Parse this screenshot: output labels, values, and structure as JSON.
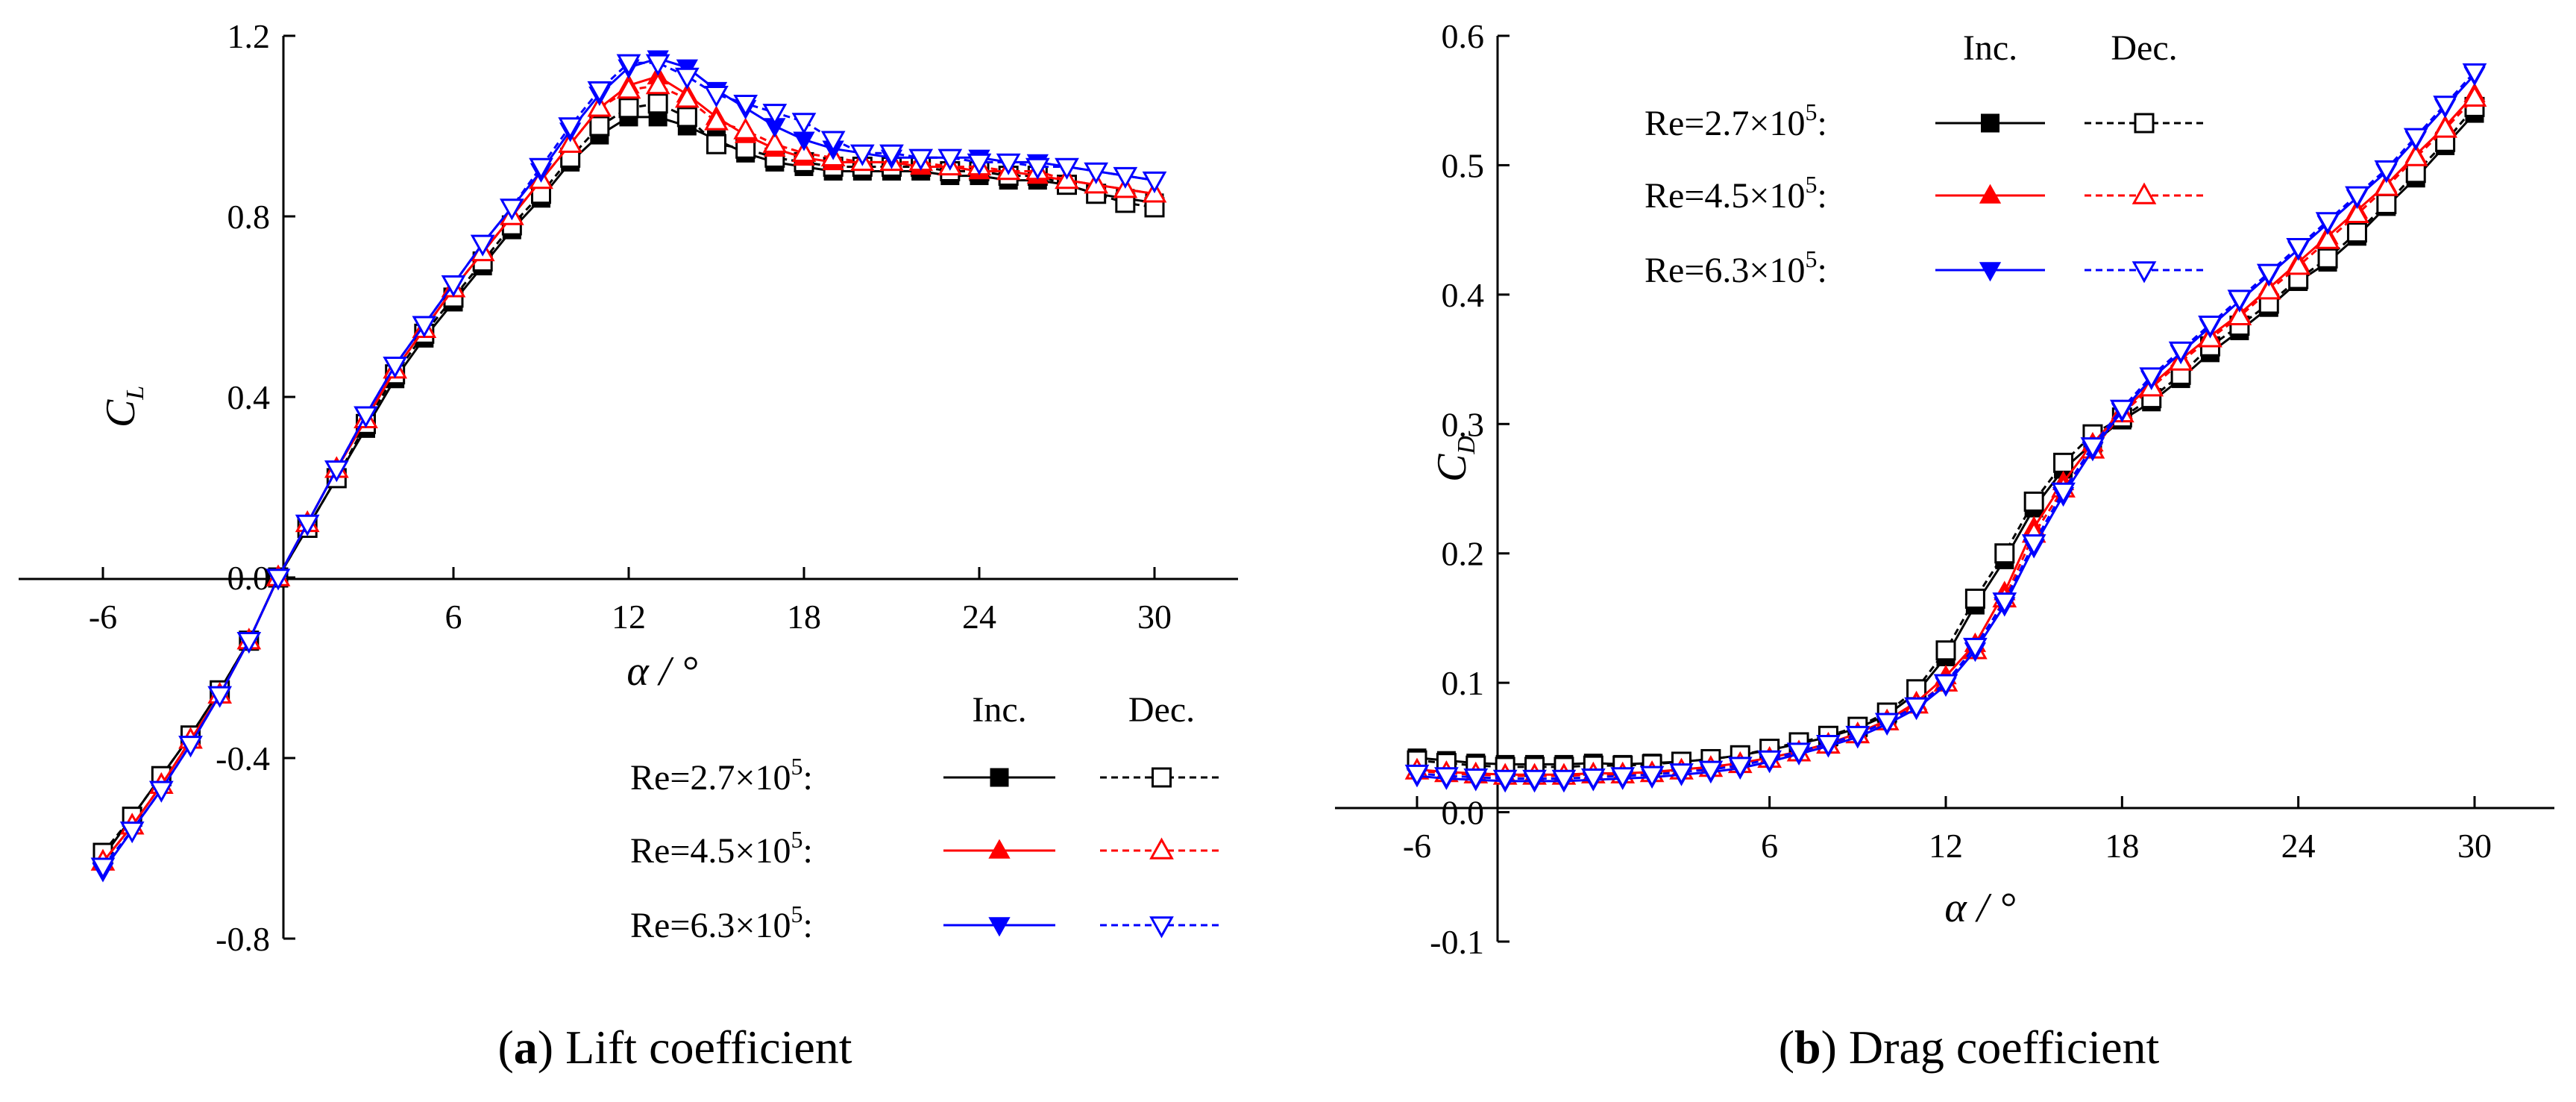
{
  "chart_data": [
    {
      "type": "line",
      "caption_letter": "a",
      "caption_text": "Lift coefficient",
      "xlabel": "α / °",
      "ylabel_main": "C",
      "ylabel_sub": "L",
      "xlim": [
        -6,
        30
      ],
      "ylim": [
        -0.8,
        1.2
      ],
      "xticks": [
        "-6",
        "6",
        "12",
        "18",
        "24",
        "30"
      ],
      "yticks": [
        "-0.8",
        "-0.4",
        "0.0",
        "0.4",
        "0.8",
        "1.2"
      ],
      "legend_col_inc": "Inc.",
      "legend_col_dec": "Dec.",
      "x": [
        -6,
        -5,
        -4,
        -3,
        -2,
        -1,
        0,
        1,
        2,
        3,
        4,
        5,
        6,
        7,
        8,
        9,
        10,
        11,
        12,
        13,
        14,
        15,
        16,
        17,
        18,
        19,
        20,
        21,
        22,
        23,
        24,
        25,
        26,
        27,
        28,
        29,
        30
      ],
      "series": [
        {
          "name": "Re=2.7×10⁵:",
          "re_base": "Re=2.7×10",
          "re_exp": "5",
          "run": "Inc.",
          "color": "#000000",
          "marker": "square",
          "filled": true,
          "dashed": false,
          "values": [
            -0.62,
            -0.53,
            -0.44,
            -0.35,
            -0.25,
            -0.14,
            0.0,
            0.11,
            0.22,
            0.33,
            0.44,
            0.53,
            0.61,
            0.69,
            0.77,
            0.84,
            0.92,
            0.98,
            1.02,
            1.02,
            1.0,
            0.97,
            0.94,
            0.92,
            0.91,
            0.9,
            0.9,
            0.9,
            0.9,
            0.89,
            0.89,
            0.88,
            0.88,
            0.87,
            0.85,
            0.84,
            0.83
          ]
        },
        {
          "name": "Re=2.7×10⁵:",
          "re_base": "Re=2.7×10",
          "re_exp": "5",
          "run": "Dec.",
          "color": "#000000",
          "marker": "square",
          "filled": false,
          "dashed": true,
          "values": [
            -0.61,
            -0.53,
            -0.44,
            -0.35,
            -0.25,
            -0.14,
            0.0,
            0.11,
            0.22,
            0.34,
            0.45,
            0.54,
            0.62,
            0.7,
            0.78,
            0.85,
            0.93,
            1.0,
            1.04,
            1.05,
            1.02,
            0.96,
            0.95,
            0.93,
            0.92,
            0.91,
            0.91,
            0.91,
            0.91,
            0.9,
            0.9,
            0.89,
            0.89,
            0.87,
            0.85,
            0.83,
            0.82
          ]
        },
        {
          "name": "Re=4.5×10⁵:",
          "re_base": "Re=4.5×10",
          "re_exp": "5",
          "run": "Inc.",
          "color": "#ff0000",
          "marker": "triangle-up",
          "filled": true,
          "dashed": false,
          "values": [
            -0.63,
            -0.55,
            -0.46,
            -0.36,
            -0.26,
            -0.14,
            0.0,
            0.12,
            0.24,
            0.35,
            0.46,
            0.55,
            0.64,
            0.72,
            0.8,
            0.88,
            0.96,
            1.04,
            1.09,
            1.11,
            1.07,
            1.02,
            0.98,
            0.95,
            0.93,
            0.92,
            0.92,
            0.92,
            0.91,
            0.91,
            0.9,
            0.9,
            0.89,
            0.88,
            0.87,
            0.86,
            0.85
          ]
        },
        {
          "name": "Re=4.5×10⁵:",
          "re_base": "Re=4.5×10",
          "re_exp": "5",
          "run": "Dec.",
          "color": "#ff0000",
          "marker": "triangle-up",
          "filled": false,
          "dashed": true,
          "values": [
            -0.63,
            -0.55,
            -0.46,
            -0.36,
            -0.26,
            -0.14,
            0.0,
            0.12,
            0.24,
            0.35,
            0.46,
            0.55,
            0.64,
            0.72,
            0.8,
            0.88,
            0.96,
            1.04,
            1.08,
            1.09,
            1.06,
            1.01,
            0.99,
            0.96,
            0.94,
            0.93,
            0.92,
            0.92,
            0.92,
            0.91,
            0.91,
            0.9,
            0.9,
            0.88,
            0.87,
            0.86,
            0.85
          ]
        },
        {
          "name": "Re=6.3×10⁵:",
          "re_base": "Re=6.3×10",
          "re_exp": "5",
          "run": "Inc.",
          "color": "#0000ff",
          "marker": "triangle-down",
          "filled": true,
          "dashed": false,
          "values": [
            -0.65,
            -0.56,
            -0.47,
            -0.37,
            -0.26,
            -0.14,
            0.0,
            0.12,
            0.24,
            0.36,
            0.47,
            0.56,
            0.65,
            0.74,
            0.82,
            0.9,
            0.99,
            1.07,
            1.13,
            1.15,
            1.13,
            1.08,
            1.04,
            1.0,
            0.97,
            0.95,
            0.94,
            0.93,
            0.93,
            0.93,
            0.93,
            0.92,
            0.92,
            0.91,
            0.9,
            0.89,
            0.88
          ]
        },
        {
          "name": "Re=6.3×10⁵:",
          "re_base": "Re=6.3×10",
          "re_exp": "5",
          "run": "Dec.",
          "color": "#0000ff",
          "marker": "triangle-down",
          "filled": false,
          "dashed": true,
          "values": [
            -0.64,
            -0.56,
            -0.47,
            -0.37,
            -0.26,
            -0.14,
            0.0,
            0.12,
            0.24,
            0.36,
            0.47,
            0.56,
            0.65,
            0.74,
            0.82,
            0.91,
            1.0,
            1.08,
            1.14,
            1.14,
            1.11,
            1.07,
            1.05,
            1.03,
            1.01,
            0.97,
            0.94,
            0.94,
            0.93,
            0.93,
            0.92,
            0.92,
            0.91,
            0.91,
            0.9,
            0.89,
            0.88
          ]
        }
      ]
    },
    {
      "type": "line",
      "caption_letter": "b",
      "caption_text": "Drag coefficient",
      "xlabel": "α / °",
      "ylabel_main": "C",
      "ylabel_sub": "D",
      "xlim": [
        -6,
        30
      ],
      "ylim": [
        -0.1,
        0.6
      ],
      "xticks": [
        "-6",
        "6",
        "12",
        "18",
        "24",
        "30"
      ],
      "yticks": [
        "-0.1",
        "0.0",
        "0.1",
        "0.2",
        "0.3",
        "0.4",
        "0.5",
        "0.6"
      ],
      "legend_col_inc": "Inc.",
      "legend_col_dec": "Dec.",
      "x": [
        -6,
        -5,
        -4,
        -3,
        -2,
        -1,
        0,
        1,
        2,
        3,
        4,
        5,
        6,
        7,
        8,
        9,
        10,
        11,
        12,
        13,
        14,
        15,
        16,
        17,
        18,
        19,
        20,
        21,
        22,
        23,
        24,
        25,
        26,
        27,
        28,
        29,
        30
      ],
      "series": [
        {
          "name": "Re=2.7×10⁵:",
          "re_base": "Re=2.7×10",
          "re_exp": "5",
          "run": "Inc.",
          "color": "#000000",
          "marker": "square",
          "filled": true,
          "dashed": false,
          "values": [
            0.042,
            0.04,
            0.038,
            0.037,
            0.037,
            0.037,
            0.038,
            0.037,
            0.038,
            0.039,
            0.041,
            0.044,
            0.048,
            0.053,
            0.058,
            0.065,
            0.075,
            0.092,
            0.12,
            0.16,
            0.195,
            0.235,
            0.265,
            0.285,
            0.303,
            0.317,
            0.335,
            0.355,
            0.372,
            0.39,
            0.41,
            0.425,
            0.445,
            0.468,
            0.49,
            0.515,
            0.54
          ]
        },
        {
          "name": "Re=2.7×10⁵:",
          "re_base": "Re=2.7×10",
          "re_exp": "5",
          "run": "Dec.",
          "color": "#000000",
          "marker": "square",
          "filled": false,
          "dashed": true,
          "values": [
            0.04,
            0.038,
            0.036,
            0.035,
            0.035,
            0.035,
            0.036,
            0.036,
            0.037,
            0.039,
            0.041,
            0.044,
            0.049,
            0.054,
            0.059,
            0.066,
            0.077,
            0.095,
            0.125,
            0.165,
            0.2,
            0.24,
            0.27,
            0.292,
            0.305,
            0.32,
            0.338,
            0.36,
            0.376,
            0.393,
            0.412,
            0.428,
            0.448,
            0.47,
            0.494,
            0.518,
            0.545
          ]
        },
        {
          "name": "Re=4.5×10⁵:",
          "re_base": "Re=4.5×10",
          "re_exp": "5",
          "run": "Inc.",
          "color": "#ff0000",
          "marker": "triangle-up",
          "filled": true,
          "dashed": false,
          "values": [
            0.033,
            0.031,
            0.03,
            0.029,
            0.029,
            0.029,
            0.03,
            0.03,
            0.031,
            0.033,
            0.035,
            0.038,
            0.042,
            0.047,
            0.053,
            0.061,
            0.071,
            0.085,
            0.105,
            0.13,
            0.17,
            0.22,
            0.255,
            0.285,
            0.31,
            0.33,
            0.35,
            0.368,
            0.385,
            0.405,
            0.425,
            0.445,
            0.465,
            0.485,
            0.508,
            0.53,
            0.555
          ]
        },
        {
          "name": "Re=4.5×10⁵:",
          "re_base": "Re=4.5×10",
          "re_exp": "5",
          "run": "Dec.",
          "color": "#ff0000",
          "marker": "triangle-up",
          "filled": false,
          "dashed": true,
          "values": [
            0.032,
            0.03,
            0.029,
            0.028,
            0.028,
            0.028,
            0.029,
            0.029,
            0.03,
            0.032,
            0.034,
            0.037,
            0.041,
            0.046,
            0.052,
            0.06,
            0.07,
            0.083,
            0.1,
            0.125,
            0.165,
            0.215,
            0.25,
            0.28,
            0.308,
            0.328,
            0.348,
            0.366,
            0.383,
            0.403,
            0.422,
            0.442,
            0.462,
            0.483,
            0.506,
            0.528,
            0.552
          ]
        },
        {
          "name": "Re=6.3×10⁵:",
          "re_base": "Re=6.3×10",
          "re_exp": "5",
          "run": "Inc.",
          "color": "#0000ff",
          "marker": "triangle-down",
          "filled": true,
          "dashed": false,
          "values": [
            0.028,
            0.026,
            0.025,
            0.024,
            0.024,
            0.024,
            0.025,
            0.026,
            0.027,
            0.029,
            0.031,
            0.034,
            0.039,
            0.045,
            0.051,
            0.058,
            0.068,
            0.08,
            0.098,
            0.125,
            0.16,
            0.205,
            0.245,
            0.28,
            0.31,
            0.335,
            0.355,
            0.375,
            0.395,
            0.415,
            0.435,
            0.455,
            0.475,
            0.495,
            0.52,
            0.545,
            0.57
          ]
        },
        {
          "name": "Re=6.3×10⁵:",
          "re_base": "Re=6.3×10",
          "re_exp": "5",
          "run": "Dec.",
          "color": "#0000ff",
          "marker": "triangle-down",
          "filled": false,
          "dashed": true,
          "values": [
            0.03,
            0.028,
            0.027,
            0.026,
            0.026,
            0.026,
            0.027,
            0.028,
            0.029,
            0.031,
            0.033,
            0.036,
            0.041,
            0.047,
            0.053,
            0.06,
            0.07,
            0.082,
            0.1,
            0.128,
            0.163,
            0.208,
            0.248,
            0.283,
            0.312,
            0.337,
            0.357,
            0.377,
            0.397,
            0.417,
            0.437,
            0.457,
            0.477,
            0.497,
            0.522,
            0.547,
            0.572
          ]
        }
      ]
    }
  ]
}
